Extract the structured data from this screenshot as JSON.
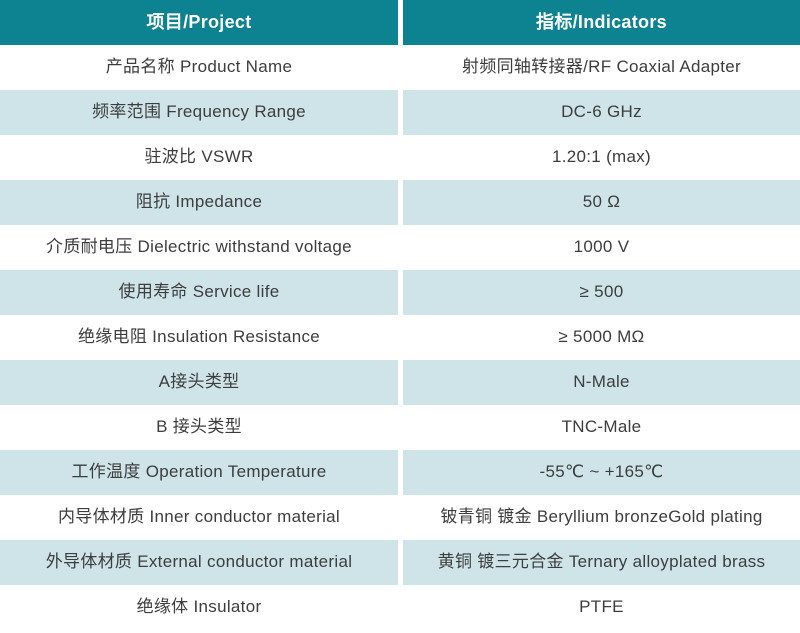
{
  "colors": {
    "header_bg": "#0d8291",
    "alt_row_bg": "#cfe4e9",
    "text": "#3d3d3d",
    "header_text": "#ffffff"
  },
  "table": {
    "headers": [
      "项目/Project",
      "指标/Indicators"
    ],
    "rows": [
      {
        "project": "产品名称 Product Name",
        "indicator": "射频同轴转接器/RF Coaxial Adapter"
      },
      {
        "project": "频率范围 Frequency Range",
        "indicator": "DC-6 GHz"
      },
      {
        "project": "驻波比 VSWR",
        "indicator": "1.20:1 (max)"
      },
      {
        "project": "阻抗 Impedance",
        "indicator": "50 Ω"
      },
      {
        "project": "介质耐电压 Dielectric withstand voltage",
        "indicator": "1000 V"
      },
      {
        "project": "使用寿命 Service life",
        "indicator": "≥ 500"
      },
      {
        "project": "绝缘电阻 Insulation Resistance",
        "indicator": "≥ 5000 MΩ"
      },
      {
        "project": "A接头类型",
        "indicator": "N-Male"
      },
      {
        "project": "B 接头类型",
        "indicator": "TNC-Male"
      },
      {
        "project": "工作温度 Operation Temperature",
        "indicator": "-55℃ ~ +165℃"
      },
      {
        "project": "内导体材质 Inner conductor material",
        "indicator": "铍青铜 镀金 Beryllium bronzeGold plating"
      },
      {
        "project": "外导体材质 External conductor material",
        "indicator": "黄铜 镀三元合金 Ternary alloyplated brass"
      },
      {
        "project": "绝缘体 Insulator",
        "indicator": "PTFE"
      }
    ]
  }
}
